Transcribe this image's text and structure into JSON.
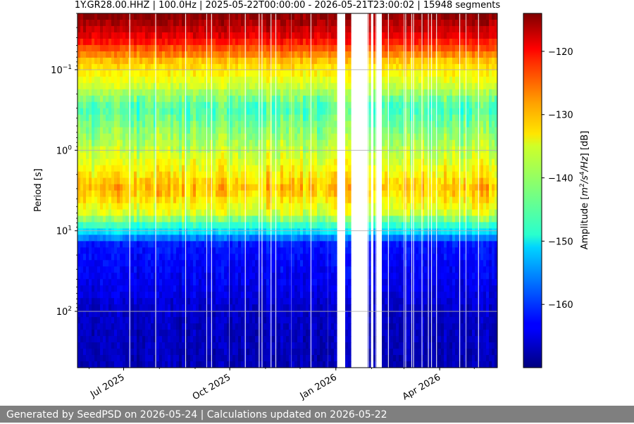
{
  "chart_data": {
    "type": "heatmap",
    "title": "1Y.GR28.00.HHZ | 100.0Hz | 2025-05-22T00:00:00 - 2026-05-21T23:00:02 | 15948 segments",
    "xlabel": "",
    "ylabel": "Period [s]",
    "y_scale": "log",
    "y_inverted": true,
    "ylim": [
      0.02,
      500
    ],
    "xlim": [
      "2025-05-22",
      "2026-05-21"
    ],
    "x_ticks": [
      {
        "date": "2025-07-01",
        "label": "Jul 2025"
      },
      {
        "date": "2025-10-01",
        "label": "Oct 2025"
      },
      {
        "date": "2026-01-01",
        "label": "Jan 2026"
      },
      {
        "date": "2026-04-01",
        "label": "Apr 2026"
      }
    ],
    "y_ticks": [
      {
        "value": 0.1,
        "base": "10",
        "exp": "−1"
      },
      {
        "value": 1,
        "base": "10",
        "exp": "0"
      },
      {
        "value": 10,
        "base": "10",
        "exp": "1"
      },
      {
        "value": 100,
        "base": "10",
        "exp": "2"
      }
    ],
    "grid": true,
    "colormap": "jet",
    "colorbar": {
      "label_prefix": "Amplitude [",
      "label_unit": "m",
      "label_exp1": "2",
      "label_mid": "/s",
      "label_exp2": "4",
      "label_end": "/Hz",
      "label_suffix": "] [dB]",
      "min": -170,
      "max": -114,
      "ticks": [
        {
          "value": -120,
          "label": "−120"
        },
        {
          "value": -130,
          "label": "−130"
        },
        {
          "value": -140,
          "label": "−140"
        },
        {
          "value": -150,
          "label": "−150"
        },
        {
          "value": -160,
          "label": "−160"
        }
      ]
    },
    "amplitude_profile": [
      {
        "period": 0.02,
        "db": -114
      },
      {
        "period": 0.04,
        "db": -120
      },
      {
        "period": 0.08,
        "db": -132
      },
      {
        "period": 0.15,
        "db": -137
      },
      {
        "period": 0.3,
        "db": -145
      },
      {
        "period": 0.6,
        "db": -141
      },
      {
        "period": 1.5,
        "db": -136
      },
      {
        "period": 3,
        "db": -131
      },
      {
        "period": 6,
        "db": -137
      },
      {
        "period": 10,
        "db": -150
      },
      {
        "period": 15,
        "db": -162
      },
      {
        "period": 50,
        "db": -164
      },
      {
        "period": 100,
        "db": -166
      },
      {
        "period": 500,
        "db": -167
      }
    ],
    "data_gaps": [
      {
        "start": "2026-01-01",
        "end": "2026-01-08"
      },
      {
        "start": "2026-01-15",
        "end": "2026-01-29"
      },
      {
        "start": "2026-01-31",
        "end": "2026-02-03"
      },
      {
        "start": "2026-02-06",
        "end": "2026-02-09"
      }
    ]
  },
  "footer": {
    "text": "Generated by SeedPSD on 2026-05-24 | Calculations updated on 2026-05-22"
  }
}
